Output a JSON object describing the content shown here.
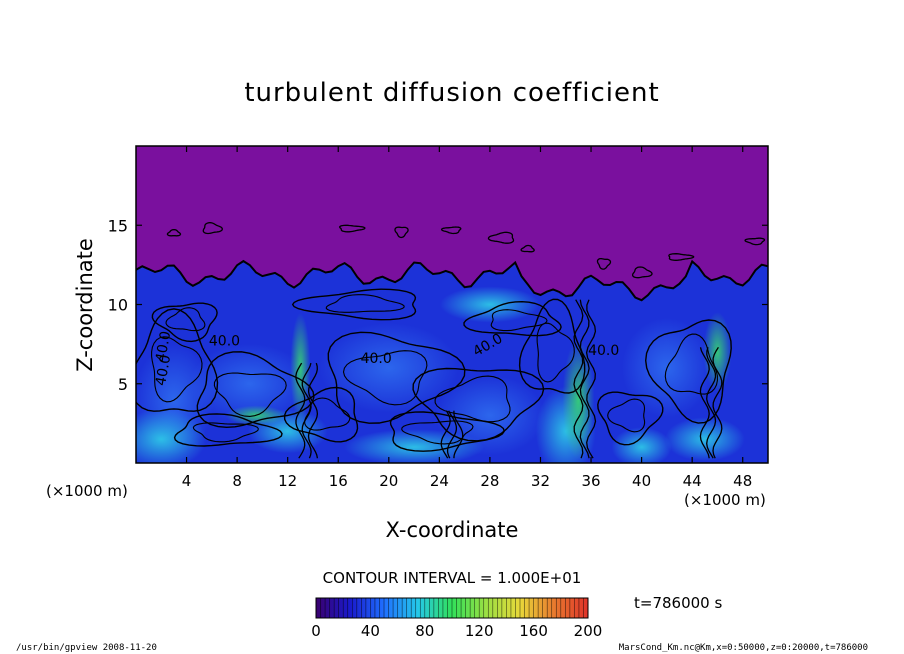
{
  "chart_data": {
    "type": "heatmap",
    "title": "turbulent diffusion coefficient",
    "xlabel": "X-coordinate",
    "ylabel": "Z-coordinate",
    "x_unit_left": "(×1000 m)",
    "x_unit_right": "(×1000 m)",
    "xlim": [
      0,
      50
    ],
    "ylim": [
      0,
      20
    ],
    "xticks": [
      "4",
      "8",
      "12",
      "16",
      "20",
      "24",
      "28",
      "32",
      "36",
      "40",
      "44",
      "48"
    ],
    "yticks": [
      "5",
      "10",
      "15"
    ],
    "contour_labels": [
      "40.0",
      "40.0",
      "40.0",
      "40.0",
      "40.0",
      "40.0"
    ],
    "contour_interval_text": "CONTOUR INTERVAL = 1.000E+01",
    "colorbar": {
      "min": 0,
      "max": 200,
      "ticks": [
        "0",
        "40",
        "80",
        "120",
        "160",
        "200"
      ],
      "colors": [
        "#3a006e",
        "#1a1acc",
        "#1f6fff",
        "#25c8e8",
        "#32e05a",
        "#9be043",
        "#e8d83a",
        "#e87a2e",
        "#e0332a"
      ]
    },
    "time_label": "t=786000 s",
    "colors": {
      "upper_region": "#7a109e",
      "dark_blue": "#1c32d8",
      "mid_blue": "#2f6ff0",
      "cyan": "#2fd6e8",
      "green": "#38e06a"
    }
  },
  "footer": {
    "left": "/usr/bin/gpview   2008-11-20",
    "right": "MarsCond_Km.nc@Km,x=0:50000,z=0:20000,t=786000"
  }
}
